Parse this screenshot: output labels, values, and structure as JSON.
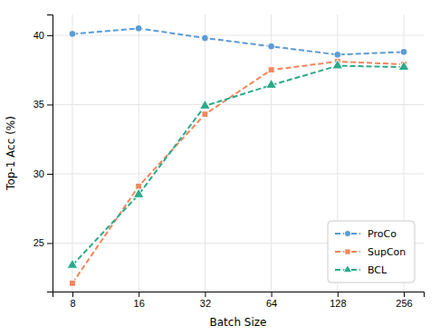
{
  "chart_data": {
    "type": "line",
    "xlabel": "Batch Size",
    "ylabel": "Top-1 Acc (%)",
    "log": "x",
    "x": [
      8,
      16,
      32,
      64,
      128,
      256
    ],
    "xlim": [
      6.49802,
      315.173
    ],
    "xticks": [
      8,
      16,
      32,
      64,
      128,
      256
    ],
    "ylim": [
      21.5,
      41.5
    ],
    "yticks": [
      25,
      30,
      35,
      40
    ],
    "grid": true,
    "legend": "lower right",
    "series": [
      {
        "name": "ProCo",
        "color": "#5b9bd5",
        "marker": "circle",
        "line_style": "dashed",
        "values": [
          40.1,
          40.5,
          39.8,
          39.2,
          38.6,
          38.8
        ]
      },
      {
        "name": "SupCon",
        "color": "#f4855a",
        "marker": "square",
        "line_style": "dashed",
        "values": [
          22.1,
          29.1,
          34.3,
          37.5,
          38.1,
          37.9
        ]
      },
      {
        "name": "BCL",
        "color": "#2aaa8a",
        "marker": "triangle",
        "line_style": "dashed",
        "values": [
          23.4,
          28.5,
          34.9,
          36.4,
          37.8,
          37.7
        ]
      }
    ]
  }
}
